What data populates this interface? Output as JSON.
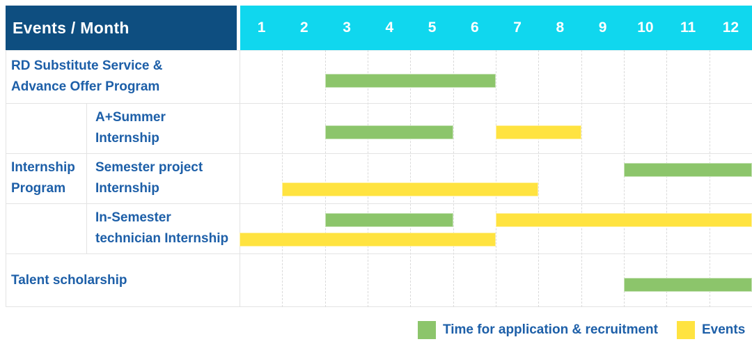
{
  "colors": {
    "header_bg": "#0e4e80",
    "months_bg": "#10d7ee",
    "label_text": "#1d5fa8",
    "green": "#8cc56b",
    "yellow": "#ffe340",
    "grid_line": "#e3e3e3"
  },
  "header": {
    "title": "Events / Month",
    "months": [
      "1",
      "2",
      "3",
      "4",
      "5",
      "6",
      "7",
      "8",
      "9",
      "10",
      "11",
      "12"
    ]
  },
  "legend": {
    "items": [
      {
        "label": "Time for application & recruitment",
        "series": "application"
      },
      {
        "label": "Events",
        "series": "events"
      }
    ]
  },
  "chart_data": {
    "type": "bar",
    "variant": "gantt-schedule",
    "title": "Events / Month",
    "x_categories": [
      "1",
      "2",
      "3",
      "4",
      "5",
      "6",
      "7",
      "8",
      "9",
      "10",
      "11",
      "12"
    ],
    "x_range": [
      1,
      12
    ],
    "grid": "dashed-vertical-month-lines",
    "legend_position": "bottom-right",
    "series": [
      {
        "key": "application",
        "name": "Time for application & recruitment",
        "color": "#8cc56b"
      },
      {
        "key": "events",
        "name": "Events",
        "color": "#ffe340"
      }
    ],
    "group_cell": {
      "label": "Internship Program",
      "label_lines": [
        "Internship",
        "Program"
      ],
      "spans_rows": [
        1,
        2,
        3
      ]
    },
    "rows": [
      {
        "label": "RD Substitute Service & Advance Offer Program",
        "label_lines": [
          "RD Substitute Service &",
          "Advance Offer Program"
        ],
        "indent": false,
        "bars": [
          {
            "series": "application",
            "start_month": 3,
            "end_month": 6,
            "lane": "single"
          }
        ]
      },
      {
        "label": "A+Summer Internship",
        "label_lines": [
          "A+Summer",
          "Internship"
        ],
        "indent": true,
        "bars": [
          {
            "series": "application",
            "start_month": 3,
            "end_month": 5,
            "lane": "single"
          },
          {
            "series": "events",
            "start_month": 7,
            "end_month": 8,
            "lane": "single"
          }
        ]
      },
      {
        "label": "Semester project Internship",
        "label_lines": [
          "Semester project",
          "Internship"
        ],
        "indent": true,
        "bars": [
          {
            "series": "application",
            "start_month": 10,
            "end_month": 12,
            "lane": "top"
          },
          {
            "series": "events",
            "start_month": 2,
            "end_month": 7,
            "lane": "bottom"
          }
        ]
      },
      {
        "label": "In-Semester technician Internship",
        "label_lines": [
          "In-Semester",
          "technician Internship"
        ],
        "indent": true,
        "bars": [
          {
            "series": "application",
            "start_month": 3,
            "end_month": 5,
            "lane": "top"
          },
          {
            "series": "events",
            "start_month": 7,
            "end_month": 12,
            "lane": "top"
          },
          {
            "series": "events",
            "start_month": 1,
            "end_month": 6,
            "lane": "bottom"
          }
        ]
      },
      {
        "label": "Talent scholarship",
        "label_lines": [
          "Talent scholarship"
        ],
        "indent": false,
        "bars": [
          {
            "series": "application",
            "start_month": 10,
            "end_month": 12,
            "lane": "single"
          }
        ]
      }
    ]
  }
}
